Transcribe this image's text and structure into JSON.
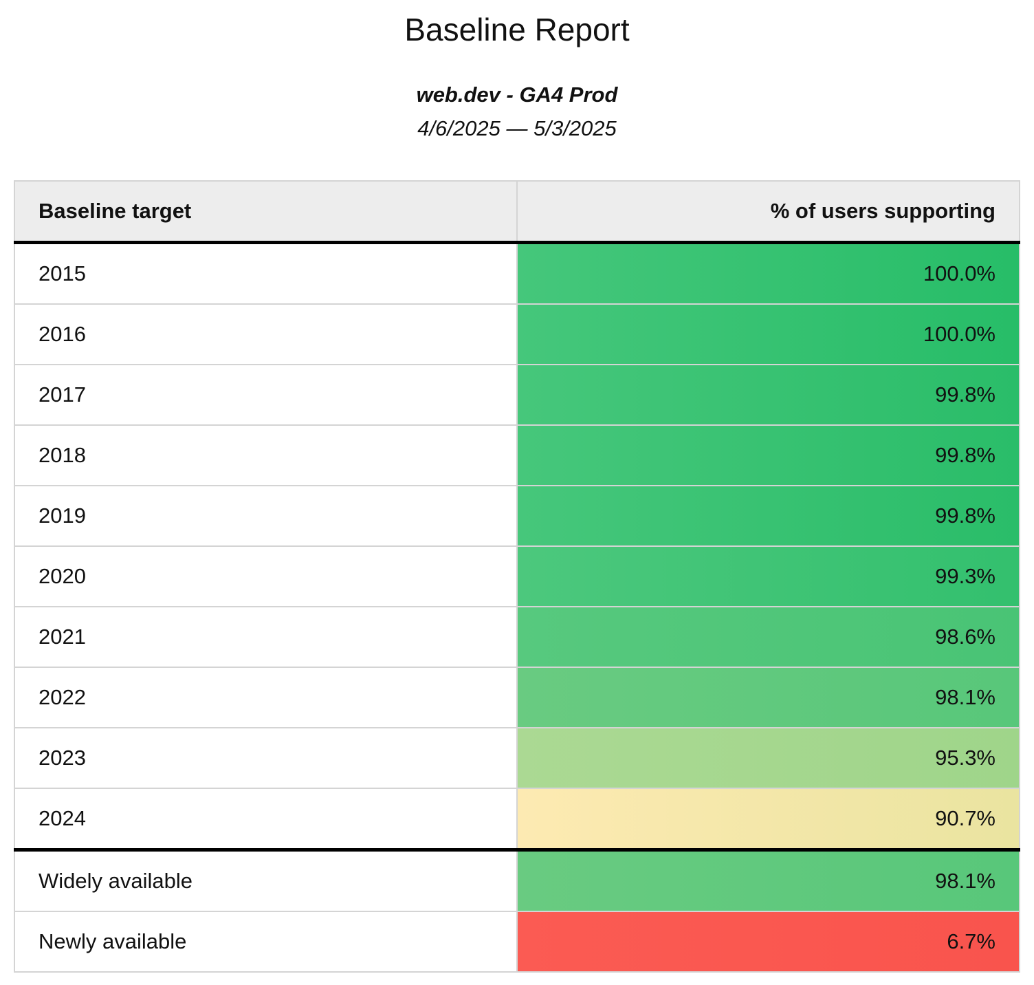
{
  "page": {
    "title": "Baseline Report",
    "subtitle": "web.dev - GA4 Prod",
    "date_range": "4/6/2025 — 5/3/2025"
  },
  "table": {
    "header": {
      "target_label": "Baseline target",
      "value_label": "% of users supporting"
    },
    "colors": {
      "header_bg": "#ededed",
      "border_light": "#d4d4d4",
      "border_heavy": "#000000",
      "text": "#111111"
    },
    "rows": [
      {
        "target": "2015",
        "value": "100.0%",
        "section": "years",
        "color_left": "#45c77b",
        "color_right": "#27bd68"
      },
      {
        "target": "2016",
        "value": "100.0%",
        "section": "years",
        "color_left": "#45c77b",
        "color_right": "#27bd68"
      },
      {
        "target": "2017",
        "value": "99.8%",
        "section": "years",
        "color_left": "#46c77b",
        "color_right": "#2abd69"
      },
      {
        "target": "2018",
        "value": "99.8%",
        "section": "years",
        "color_left": "#46c77b",
        "color_right": "#2abd69"
      },
      {
        "target": "2019",
        "value": "99.8%",
        "section": "years",
        "color_left": "#46c77b",
        "color_right": "#2abd69"
      },
      {
        "target": "2020",
        "value": "99.3%",
        "section": "years",
        "color_left": "#4cc87d",
        "color_right": "#33c06e"
      },
      {
        "target": "2021",
        "value": "98.6%",
        "section": "years",
        "color_left": "#57c97e",
        "color_right": "#49c475"
      },
      {
        "target": "2022",
        "value": "98.1%",
        "section": "years",
        "color_left": "#69cb81",
        "color_right": "#58c77a"
      },
      {
        "target": "2023",
        "value": "95.3%",
        "section": "years",
        "color_left": "#abd993",
        "color_right": "#9fd58a"
      },
      {
        "target": "2024",
        "value": "90.7%",
        "section": "years",
        "color_left": "#fdeab2",
        "color_right": "#eae4a0"
      },
      {
        "target": "Widely available",
        "value": "98.1%",
        "section": "availability",
        "color_left": "#69cb81",
        "color_right": "#58c77a"
      },
      {
        "target": "Newly available",
        "value": "6.7%",
        "section": "availability",
        "color_left": "#fb5b53",
        "color_right": "#f9544d"
      }
    ]
  },
  "chart_data": {
    "type": "table",
    "title": "Baseline Report",
    "subtitle": "web.dev - GA4 Prod",
    "date_range": "4/6/2025 — 5/3/2025",
    "columns": [
      "Baseline target",
      "% of users supporting"
    ],
    "categories": [
      "2015",
      "2016",
      "2017",
      "2018",
      "2019",
      "2020",
      "2021",
      "2022",
      "2023",
      "2024",
      "Widely available",
      "Newly available"
    ],
    "values": [
      100.0,
      100.0,
      99.8,
      99.8,
      99.8,
      99.3,
      98.6,
      98.1,
      95.3,
      90.7,
      98.1,
      6.7
    ],
    "value_unit": "%",
    "value_range": [
      0,
      100
    ]
  }
}
